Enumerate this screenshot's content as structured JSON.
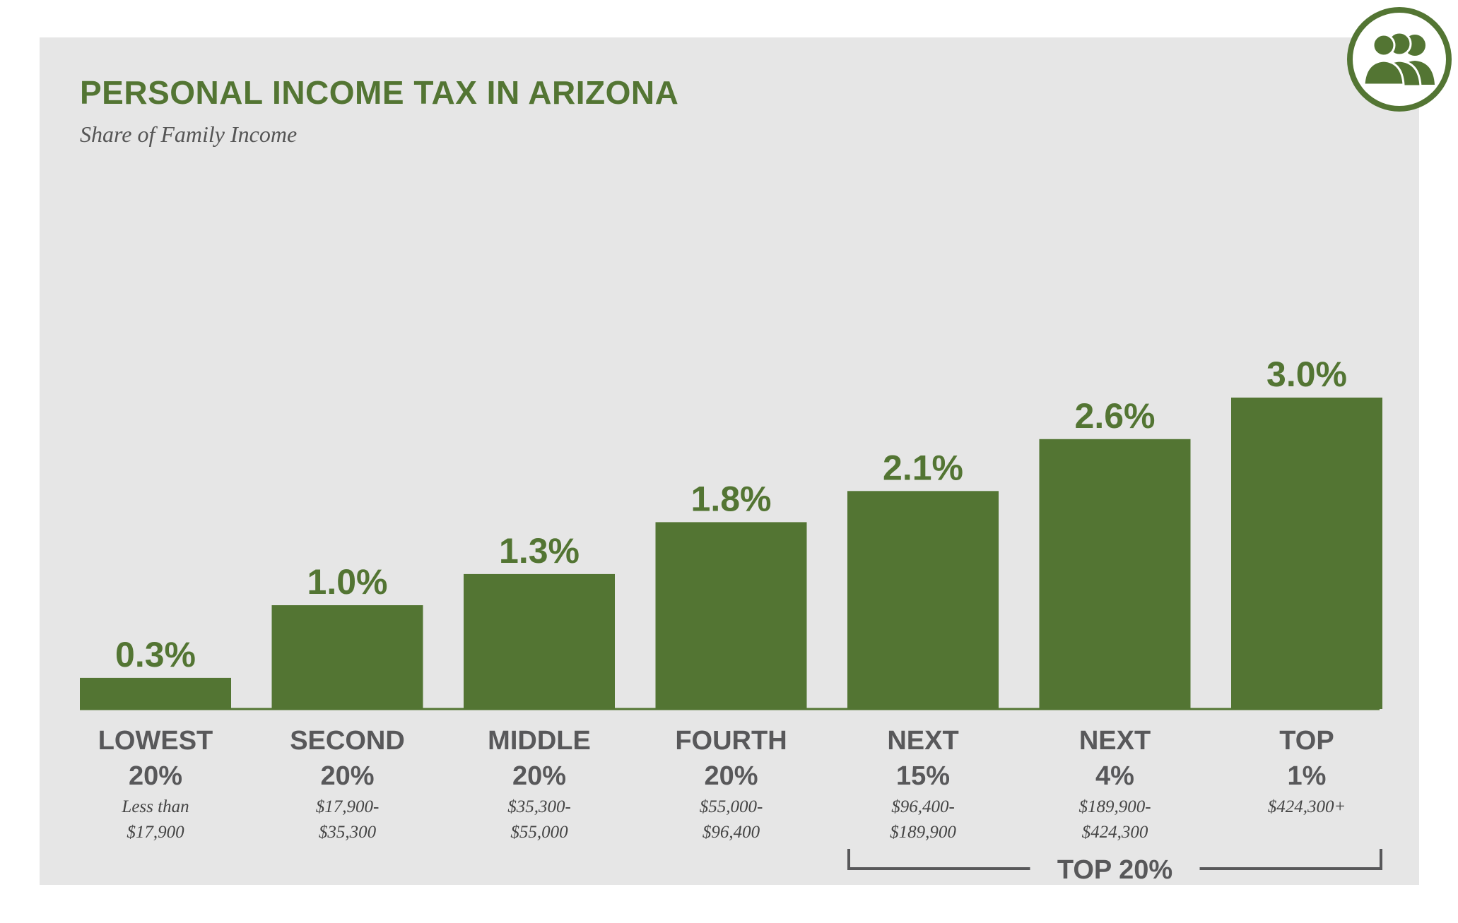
{
  "colors": {
    "bar": "#537533",
    "title": "#537533",
    "panel": "#e6e6e6",
    "axis": "#537533",
    "category_text": "#58585a",
    "range_text": "#444444",
    "bracket": "#58585a"
  },
  "icons": {
    "badge": "people-group-icon"
  },
  "chart_data": {
    "type": "bar",
    "title": "PERSONAL INCOME TAX IN ARIZONA",
    "subtitle": "Share of Family Income",
    "ylim": [
      0,
      3.0
    ],
    "grid": false,
    "value_suffix": "%",
    "categories": [
      {
        "line1": "LOWEST",
        "line2": "20%",
        "range": [
          "Less than",
          "$17,900"
        ]
      },
      {
        "line1": "SECOND",
        "line2": "20%",
        "range": [
          "$17,900-",
          "$35,300"
        ]
      },
      {
        "line1": "MIDDLE",
        "line2": "20%",
        "range": [
          "$35,300-",
          "$55,000"
        ]
      },
      {
        "line1": "FOURTH",
        "line2": "20%",
        "range": [
          "$55,000-",
          "$96,400"
        ]
      },
      {
        "line1": "NEXT",
        "line2": "15%",
        "range": [
          "$96,400-",
          "$189,900"
        ]
      },
      {
        "line1": "NEXT",
        "line2": "4%",
        "range": [
          "$189,900-",
          "$424,300"
        ]
      },
      {
        "line1": "TOP",
        "line2": "1%",
        "range": [
          "$424,300+"
        ]
      }
    ],
    "values": [
      0.3,
      1.0,
      1.3,
      1.8,
      2.1,
      2.6,
      3.0
    ],
    "value_labels": [
      "0.3%",
      "1.0%",
      "1.3%",
      "1.8%",
      "2.1%",
      "2.6%",
      "3.0%"
    ],
    "bracket": {
      "label": "TOP 20%",
      "from_category": 4,
      "to_category": 6
    }
  }
}
